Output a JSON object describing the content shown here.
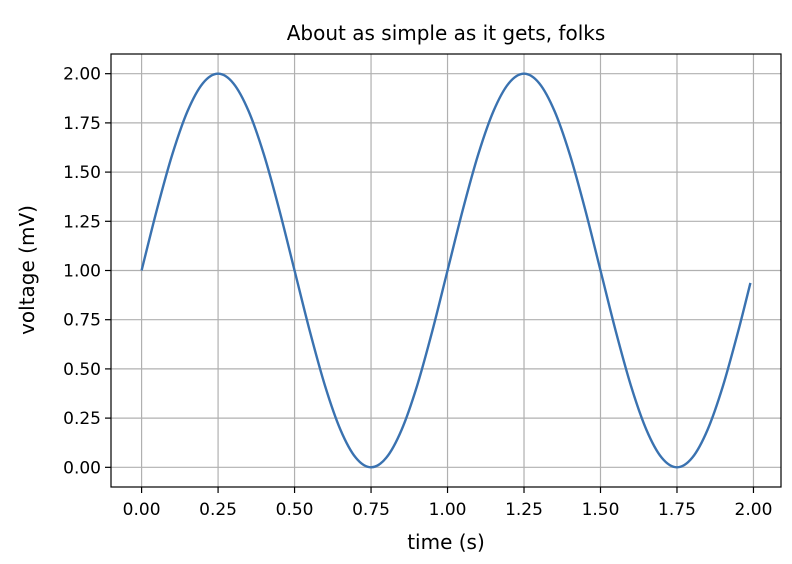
{
  "chart_data": {
    "type": "line",
    "title": "About as simple as it gets, folks",
    "xlabel": "time (s)",
    "ylabel": "voltage (mV)",
    "xlim": [
      -0.1,
      2.09
    ],
    "ylim": [
      -0.1,
      2.1
    ],
    "grid": true,
    "x_ticks": [
      0.0,
      0.25,
      0.5,
      0.75,
      1.0,
      1.25,
      1.5,
      1.75,
      2.0
    ],
    "x_tick_labels": [
      "0.00",
      "0.25",
      "0.50",
      "0.75",
      "1.00",
      "1.25",
      "1.50",
      "1.75",
      "2.00"
    ],
    "y_ticks": [
      0.0,
      0.25,
      0.5,
      0.75,
      1.0,
      1.25,
      1.5,
      1.75,
      2.0
    ],
    "y_tick_labels": [
      "0.00",
      "0.25",
      "0.50",
      "0.75",
      "1.00",
      "1.25",
      "1.50",
      "1.75",
      "2.00"
    ],
    "series": [
      {
        "color": "#3a72b0",
        "x": [
          0.0,
          0.05,
          0.1,
          0.15,
          0.2,
          0.25,
          0.3,
          0.35,
          0.4,
          0.45,
          0.5,
          0.55,
          0.6,
          0.65,
          0.7,
          0.75,
          0.8,
          0.85,
          0.9,
          0.95,
          1.0,
          1.05,
          1.1,
          1.15,
          1.2,
          1.25,
          1.3,
          1.35,
          1.4,
          1.45,
          1.5,
          1.55,
          1.6,
          1.65,
          1.7,
          1.75,
          1.8,
          1.85,
          1.9,
          1.95,
          1.99
        ],
        "y": [
          1.0,
          1.309,
          1.588,
          1.809,
          1.951,
          2.0,
          1.951,
          1.809,
          1.588,
          1.309,
          1.0,
          0.691,
          0.412,
          0.191,
          0.049,
          0.0,
          0.049,
          0.191,
          0.412,
          0.691,
          1.0,
          1.309,
          1.588,
          1.809,
          1.951,
          2.0,
          1.951,
          1.809,
          1.588,
          1.309,
          1.0,
          0.691,
          0.412,
          0.191,
          0.049,
          0.0,
          0.049,
          0.191,
          0.412,
          0.691,
          0.937
        ]
      }
    ]
  },
  "colors": {
    "grid": "#b0b0b0",
    "axes": "#000000",
    "line": "#3a72b0"
  }
}
